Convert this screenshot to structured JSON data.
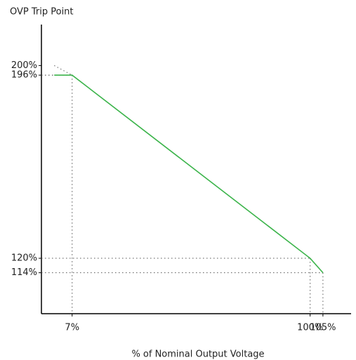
{
  "chart_data": {
    "type": "line",
    "y_label": "OVP Trip Point",
    "x_label": "% of Nominal Output Voltage",
    "series": [
      {
        "color": "#3cb44b",
        "style": "solid",
        "x": [
          0,
          7,
          100,
          105
        ],
        "values": [
          196,
          196,
          120,
          114
        ]
      },
      {
        "color": "#777777",
        "style": "dotted",
        "x": [
          0,
          7
        ],
        "values": [
          200,
          196
        ]
      }
    ],
    "xlim": [
      -5,
      116
    ],
    "ylim": [
      97,
      217
    ],
    "xticks": [
      {
        "value": 7,
        "label": "7%"
      },
      {
        "value": 100,
        "label": "100%"
      },
      {
        "value": 105,
        "label": "105%"
      }
    ],
    "yticks": [
      {
        "value": 114,
        "label": "114%"
      },
      {
        "value": 120,
        "label": "120%"
      },
      {
        "value": 196,
        "label": "196%"
      },
      {
        "value": 200,
        "label": "200%"
      }
    ],
    "guides": true
  }
}
